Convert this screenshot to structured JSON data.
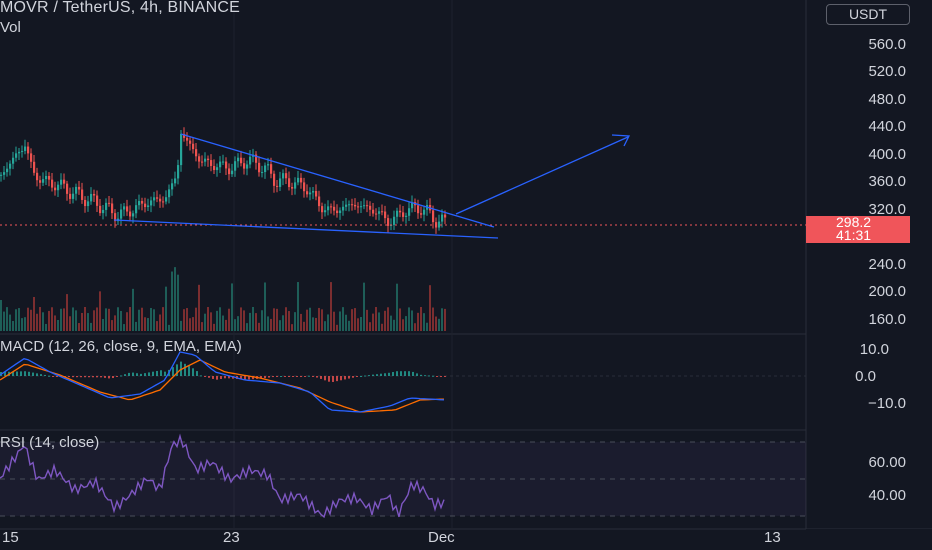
{
  "header": {
    "title": "MOVR / TetherUS, 4h, BINANCE",
    "volume_label": "Vol"
  },
  "currency_button": "USDT",
  "price_axis": [
    "560.0",
    "520.0",
    "480.0",
    "440.0",
    "400.0",
    "360.0",
    "320.0",
    "240.0",
    "200.0",
    "160.0"
  ],
  "last_price": {
    "value": "298.2",
    "countdown": "41:31"
  },
  "macd": {
    "title": "MACD (12, 26, close, 9, EMA, EMA)",
    "axis": [
      "10.0",
      "0.0",
      "−10.0"
    ]
  },
  "rsi": {
    "title": "RSI (14, close)",
    "axis": [
      "60.00",
      "40.00"
    ]
  },
  "time_axis": [
    "15",
    "23",
    "Dec",
    "13"
  ],
  "colors": {
    "background": "#131722",
    "up": "#26a69a",
    "down": "#ef5350",
    "trendline": "#2962ff",
    "macd": "#2962ff",
    "signal": "#ff6d00",
    "rsi": "#7e57c2",
    "price_tag": "#f0555a"
  }
}
